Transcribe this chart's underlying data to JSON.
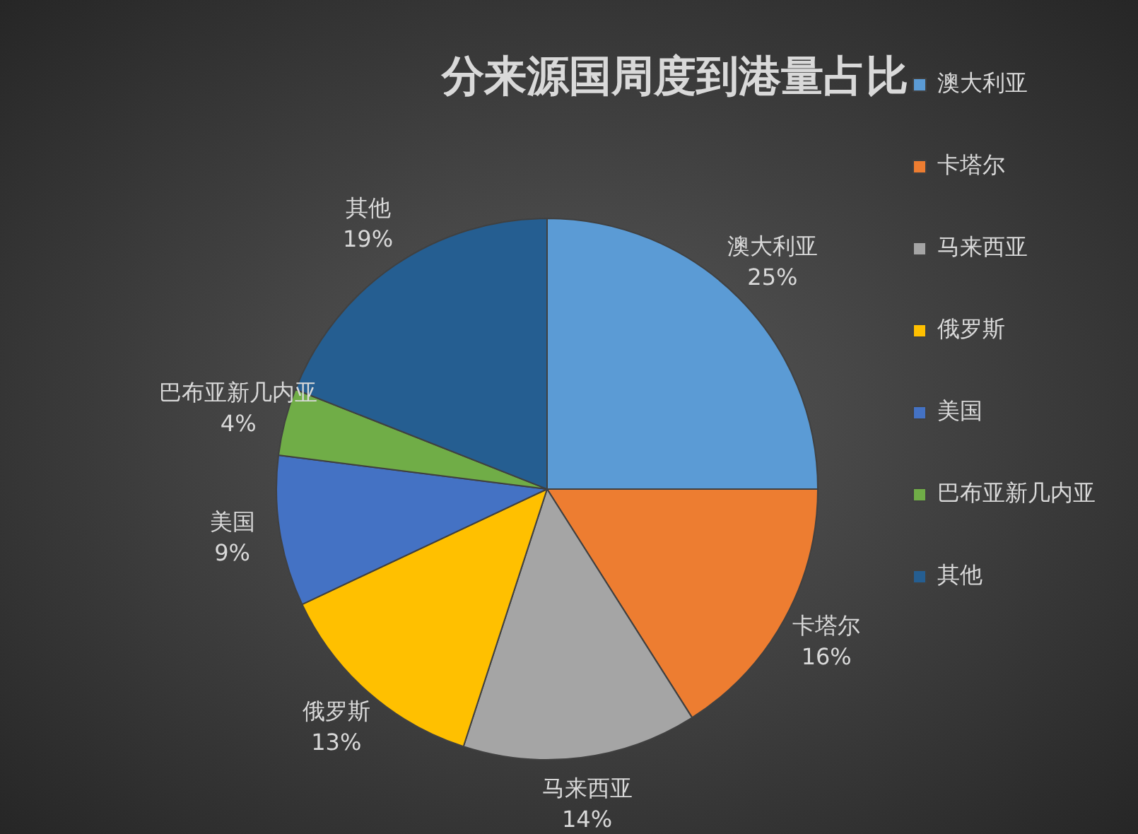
{
  "chart_data": {
    "type": "pie",
    "title": "分来源国周度到港量占比",
    "categories": [
      "澳大利亚",
      "卡塔尔",
      "马来西亚",
      "俄罗斯",
      "美国",
      "巴布亚新几内亚",
      "其他"
    ],
    "values": [
      25,
      16,
      14,
      13,
      9,
      4,
      19
    ],
    "value_labels": [
      "25%",
      "16%",
      "14%",
      "13%",
      "9%",
      "4%",
      "19%"
    ],
    "colors": [
      "#5b9bd5",
      "#ed7d31",
      "#a5a5a5",
      "#ffc000",
      "#4472c4",
      "#70ad47",
      "#255e91"
    ],
    "legend": "right"
  }
}
